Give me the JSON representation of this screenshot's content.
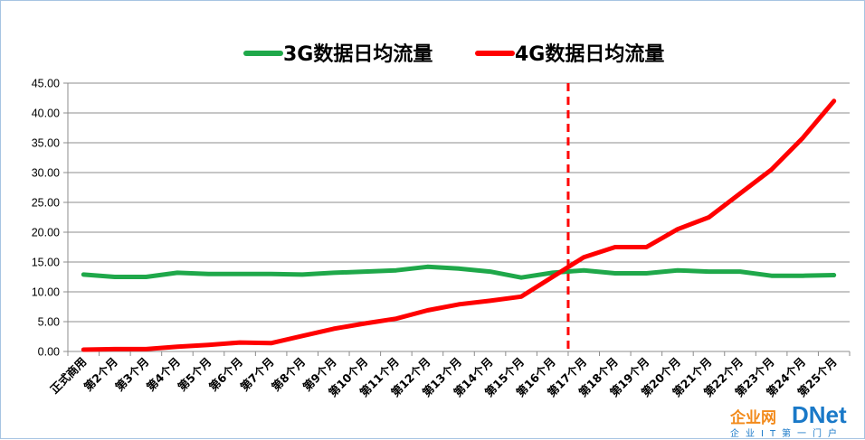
{
  "chart_data": {
    "type": "line",
    "title": "",
    "xlabel": "",
    "ylabel": "",
    "ylim": [
      0,
      45
    ],
    "yticks": [
      "0.00",
      "5.00",
      "10.00",
      "15.00",
      "20.00",
      "25.00",
      "30.00",
      "35.00",
      "40.00",
      "45.00"
    ],
    "grid": true,
    "legend_position": "top",
    "categories": [
      "正式商用",
      "第2个月",
      "第3个月",
      "第4个月",
      "第5个月",
      "第6个月",
      "第7个月",
      "第8个月",
      "第9个月",
      "第10个月",
      "第11个月",
      "第12个月",
      "第13个月",
      "第14个月",
      "第15个月",
      "第16个月",
      "第17个月",
      "第18个月",
      "第19个月",
      "第20个月",
      "第21个月",
      "第22个月",
      "第23个月",
      "第24个月",
      "第25个月"
    ],
    "series": [
      {
        "name": "3G数据日均流量",
        "color": "#1fa84a",
        "values": [
          12.9,
          12.5,
          12.5,
          13.2,
          13.0,
          13.0,
          13.0,
          12.9,
          13.2,
          13.4,
          13.6,
          14.2,
          13.9,
          13.4,
          12.4,
          13.2,
          13.6,
          13.1,
          13.1,
          13.6,
          13.4,
          13.4,
          12.7,
          12.7,
          12.8
        ]
      },
      {
        "name": "4G数据日均流量",
        "color": "#ff0000",
        "values": [
          0.3,
          0.4,
          0.4,
          0.8,
          1.1,
          1.5,
          1.4,
          2.6,
          3.8,
          4.7,
          5.5,
          6.9,
          7.9,
          8.5,
          9.2,
          12.5,
          15.8,
          17.5,
          17.5,
          20.5,
          22.5,
          26.5,
          30.5,
          35.8,
          42.0
        ]
      }
    ],
    "divider": {
      "after_category": "第16个月",
      "color": "#ff0000",
      "style": "dashed"
    }
  },
  "watermark": {
    "brand_cn": "企业网",
    "brand_en": "DNet",
    "tagline": "企业IT第一门户"
  }
}
